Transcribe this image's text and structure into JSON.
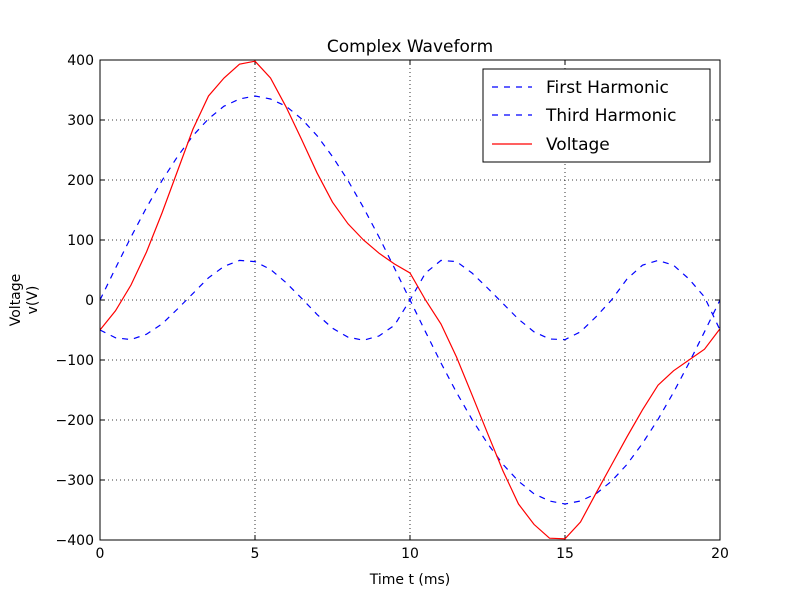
{
  "chart_data": {
    "type": "line",
    "title": "Complex Waveform",
    "xlabel": "Time t (ms)",
    "ylabel_lines": [
      "Voltage",
      "v(V)"
    ],
    "xlim": [
      0,
      20
    ],
    "ylim": [
      -400,
      400
    ],
    "xticks": [
      0,
      5,
      10,
      15,
      20
    ],
    "yticks": [
      -400,
      -300,
      -200,
      -100,
      0,
      100,
      200,
      300,
      400
    ],
    "xtick_labels": [
      "0",
      "5",
      "10",
      "15",
      "20"
    ],
    "ytick_labels": [
      "−400",
      "−300",
      "−200",
      "−100",
      "0",
      "100",
      "200",
      "300",
      "400"
    ],
    "grid": true,
    "legend_position": "top-right",
    "x": [
      0,
      0.5,
      1,
      1.5,
      2,
      2.5,
      3,
      3.5,
      4,
      4.5,
      5,
      5.5,
      6,
      6.5,
      7,
      7.5,
      8,
      8.5,
      9,
      9.5,
      10,
      10.5,
      11,
      11.5,
      12,
      12.5,
      13,
      13.5,
      14,
      14.5,
      15,
      15.5,
      16,
      16.5,
      17,
      17.5,
      18,
      18.5,
      19,
      19.5,
      20
    ],
    "series": [
      {
        "name": "First Harmonic",
        "style": "dashed",
        "color": "#0000ff",
        "values": [
          0,
          53,
          105,
          154,
          199,
          239,
          274,
          302,
          323,
          335,
          340,
          335,
          323,
          302,
          274,
          239,
          199,
          154,
          105,
          53,
          0,
          -53,
          -105,
          -154,
          -199,
          -239,
          -274,
          -302,
          -323,
          -335,
          -340,
          -335,
          -323,
          -302,
          -274,
          -239,
          -199,
          -154,
          -105,
          -53,
          0
        ]
      },
      {
        "name": "Third Harmonic",
        "style": "dashed",
        "color": "#0000ff",
        "values": [
          -50,
          -63,
          -66,
          -57,
          -40,
          -15,
          11,
          37,
          56,
          66,
          64,
          51,
          29,
          3,
          -24,
          -47,
          -62,
          -67,
          -60,
          -42,
          0,
          45,
          66,
          64,
          45,
          20,
          -6,
          -32,
          -53,
          -65,
          -66,
          -53,
          -28,
          0,
          35,
          58,
          66,
          58,
          35,
          5,
          -50
        ]
      },
      {
        "name": "Voltage",
        "style": "solid",
        "color": "#ff0000",
        "values": [
          -50,
          -18,
          25,
          80,
          145,
          215,
          285,
          340,
          370,
          393,
          398,
          370,
          322,
          268,
          212,
          163,
          127,
          100,
          78,
          60,
          45,
          0,
          -40,
          -95,
          -158,
          -222,
          -285,
          -340,
          -374,
          -397,
          -398,
          -370,
          -322,
          -275,
          -228,
          -183,
          -142,
          -118,
          -100,
          -82,
          -48
        ]
      }
    ]
  }
}
